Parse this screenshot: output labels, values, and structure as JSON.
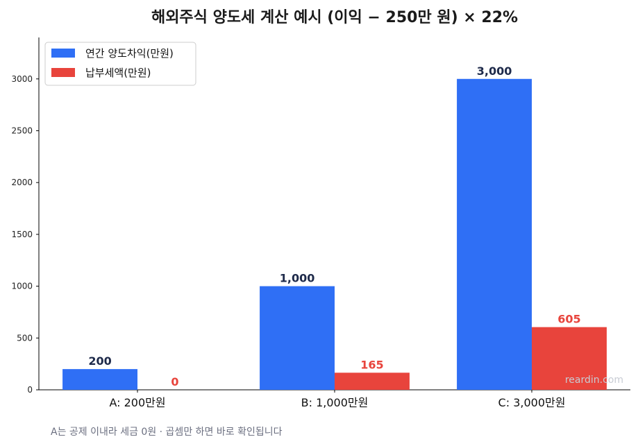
{
  "chart_data": {
    "type": "bar",
    "title": "해외주식 양도세 계산 예시  (이익 − 250만 원) × 22%",
    "categories": [
      "A: 200만원",
      "B: 1,000만원",
      "C: 3,000만원"
    ],
    "series": [
      {
        "name": "연간 양도차익(만원)",
        "values": [
          200,
          1000,
          3000
        ],
        "labels": [
          "200",
          "1,000",
          "3,000"
        ],
        "color": "#2f6ff5",
        "label_color": "#1e2a4a"
      },
      {
        "name": "납부세액(만원)",
        "values": [
          0,
          165,
          605
        ],
        "labels": [
          "0",
          "165",
          "605"
        ],
        "color": "#e8443c",
        "label_color": "#e8443c"
      }
    ],
    "yticks": [
      0,
      500,
      1000,
      1500,
      2000,
      2500,
      3000
    ],
    "ylim": [
      0,
      3400
    ],
    "grid": false,
    "legend_position": "top-left"
  },
  "footnote": "A는 공제 이내라 세금 0원 · 곱셈만 하면 바로 확인됩니다",
  "watermark": "reardin.com"
}
